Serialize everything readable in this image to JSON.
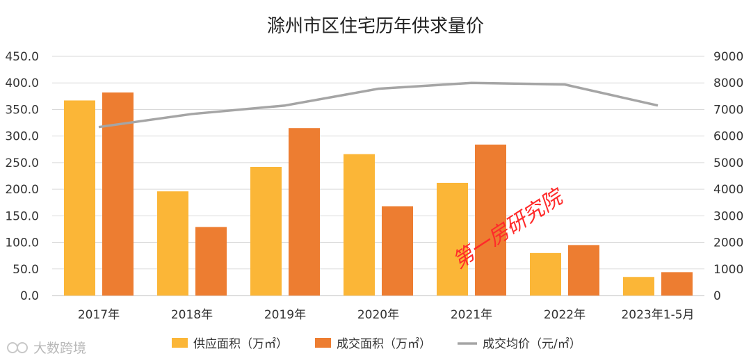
{
  "chart_data": {
    "type": "bar",
    "title": "滁州市区住宅历年供求量价",
    "categories": [
      "2017年",
      "2018年",
      "2019年",
      "2020年",
      "2021年",
      "2022年",
      "2023年1-5月"
    ],
    "series": [
      {
        "name": "供应面积（万㎡）",
        "type": "bar",
        "axis": "left",
        "color": "#fbb637",
        "values": [
          367,
          196,
          242,
          266,
          212,
          80,
          35
        ]
      },
      {
        "name": "成交面积（万㎡）",
        "type": "bar",
        "axis": "left",
        "color": "#ed7d31",
        "values": [
          382,
          129,
          315,
          168,
          284,
          95,
          44
        ]
      },
      {
        "name": "成交均价（元/㎡）",
        "type": "line",
        "axis": "right",
        "color": "#a5a5a5",
        "values": [
          6340,
          6830,
          7150,
          7780,
          8000,
          7940,
          7150
        ]
      }
    ],
    "y_left": {
      "min": 0,
      "max": 450,
      "ticks": [
        "0.0",
        "50.0",
        "100.0",
        "150.0",
        "200.0",
        "250.0",
        "300.0",
        "350.0",
        "400.0",
        "450.0"
      ]
    },
    "y_right": {
      "min": 0,
      "max": 9000,
      "ticks": [
        "0",
        "1000",
        "2000",
        "3000",
        "4000",
        "5000",
        "6000",
        "7000",
        "8000",
        "9000"
      ]
    },
    "grid": true,
    "legend": "bottom"
  },
  "watermarks": {
    "main": "第一房研究院",
    "corner": "大数跨境"
  }
}
